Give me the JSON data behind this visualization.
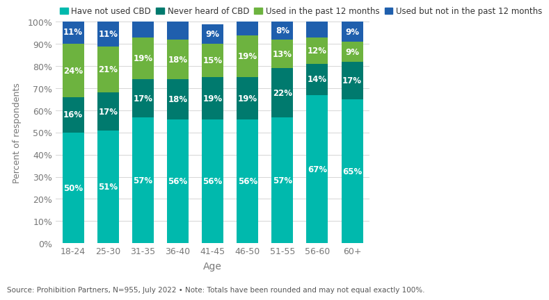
{
  "categories": [
    "18-24",
    "25-30",
    "31-35",
    "36-40",
    "41-45",
    "46-50",
    "51-55",
    "56-60",
    "60+"
  ],
  "series": {
    "Have not used CBD": [
      50,
      51,
      57,
      56,
      56,
      56,
      57,
      67,
      65
    ],
    "Never heard of CBD": [
      16,
      17,
      17,
      18,
      19,
      19,
      22,
      14,
      17
    ],
    "Used in the past 12 months": [
      24,
      21,
      19,
      18,
      15,
      19,
      13,
      12,
      9
    ],
    "Used but not in the past 12 months": [
      11,
      11,
      7,
      8,
      9,
      6,
      8,
      7,
      9
    ]
  },
  "label_show": {
    "Have not used CBD": [
      1,
      1,
      1,
      1,
      1,
      1,
      1,
      1,
      1
    ],
    "Never heard of CBD": [
      1,
      1,
      1,
      1,
      1,
      1,
      1,
      1,
      1
    ],
    "Used in the past 12 months": [
      1,
      1,
      1,
      1,
      1,
      1,
      1,
      1,
      1
    ],
    "Used but not in the past 12 months": [
      1,
      1,
      0,
      0,
      1,
      0,
      1,
      0,
      1
    ]
  },
  "colors": {
    "Have not used CBD": "#00B9AD",
    "Never heard of CBD": "#007A6E",
    "Used in the past 12 months": "#6DB33F",
    "Used but not in the past 12 months": "#1F5FAD"
  },
  "legend_order": [
    "Have not used CBD",
    "Never heard of CBD",
    "Used in the past 12 months",
    "Used but not in the past 12 months"
  ],
  "xlabel": "Age",
  "ylabel": "Percent of respondents",
  "ylim": [
    0,
    100
  ],
  "yticks": [
    0,
    10,
    20,
    30,
    40,
    50,
    60,
    70,
    80,
    90,
    100
  ],
  "ytick_labels": [
    "0%",
    "10%",
    "20%",
    "30%",
    "40%",
    "50%",
    "60%",
    "70%",
    "80%",
    "90%",
    "100%"
  ],
  "footnote": "Source: Prohibition Partners, N=955, July 2022 • Note: Totals have been rounded and may not equal exactly 100%.",
  "background_color": "#FFFFFF",
  "grid_color": "#D5D5D5",
  "bar_width": 0.62,
  "label_fontsize": 8.5,
  "axis_fontsize": 9,
  "legend_fontsize": 8.5,
  "footnote_fontsize": 7.5
}
